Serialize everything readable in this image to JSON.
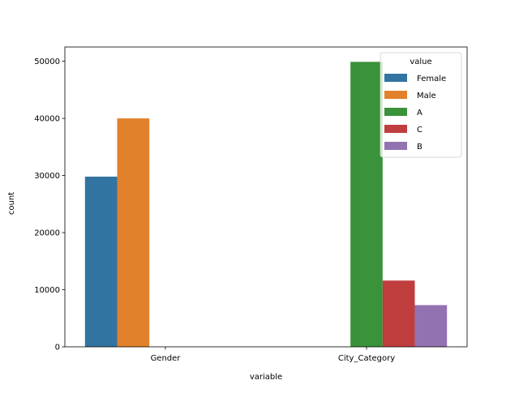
{
  "chart_data": {
    "type": "bar",
    "categories": [
      "Gender",
      "City_Category"
    ],
    "hue_levels": [
      "Female",
      "Male",
      "A",
      "C",
      "B"
    ],
    "series": [
      {
        "name": "Female",
        "color": "#3274a1",
        "values": [
          29800,
          null
        ]
      },
      {
        "name": "Male",
        "color": "#e1812c",
        "values": [
          40000,
          null
        ]
      },
      {
        "name": "A",
        "color": "#3a923a",
        "values": [
          null,
          49900
        ]
      },
      {
        "name": "C",
        "color": "#c03d3e",
        "values": [
          null,
          11600
        ]
      },
      {
        "name": "B",
        "color": "#9372b2",
        "values": [
          null,
          7300
        ]
      }
    ],
    "xlabel": "variable",
    "ylabel": "count",
    "ylim": [
      0,
      52500
    ],
    "yticks": [
      0,
      10000,
      20000,
      30000,
      40000,
      50000
    ],
    "legend_title": "value",
    "legend_position": "top-right",
    "grid": false
  }
}
